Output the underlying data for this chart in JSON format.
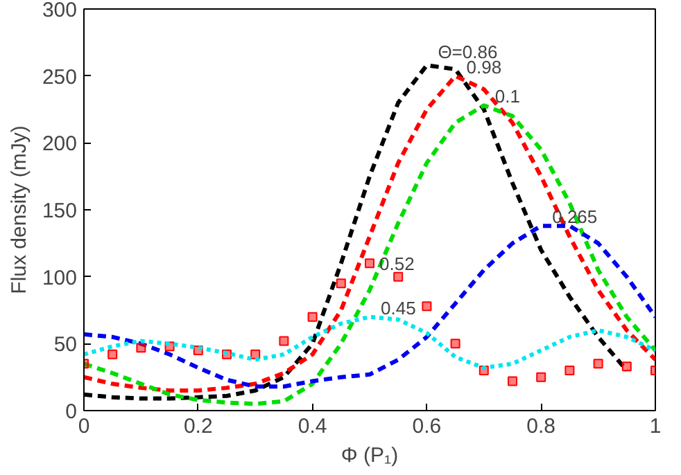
{
  "chart_data": {
    "type": "line",
    "xlabel": "Φ (P₁)",
    "ylabel": "Flux density (mJy)",
    "x": [
      0,
      0.05,
      0.1,
      0.15,
      0.2,
      0.25,
      0.3,
      0.35,
      0.4,
      0.45,
      0.5,
      0.55,
      0.6,
      0.65,
      0.7,
      0.75,
      0.8,
      0.85,
      0.9,
      0.95,
      1.0
    ],
    "xlim": [
      0,
      1
    ],
    "ylim": [
      0,
      300
    ],
    "xticks": [
      0,
      0.2,
      0.4,
      0.6,
      0.8,
      1
    ],
    "yticks": [
      0,
      50,
      100,
      150,
      200,
      250,
      300
    ],
    "grid": false,
    "line_style": "dashed",
    "series": [
      {
        "name": "Θ=0.86",
        "color": "#000000",
        "values": [
          12,
          10,
          9,
          9,
          10,
          11,
          15,
          25,
          50,
          110,
          175,
          230,
          258,
          255,
          225,
          170,
          120,
          85,
          55,
          30,
          null
        ]
      },
      {
        "name": "0.98",
        "color": "#ff0000",
        "values": [
          25,
          20,
          17,
          15,
          15,
          17,
          20,
          28,
          42,
          75,
          130,
          185,
          225,
          250,
          240,
          215,
          175,
          130,
          90,
          60,
          38
        ]
      },
      {
        "name": "0.1",
        "color": "#00dd00",
        "values": [
          35,
          28,
          20,
          12,
          8,
          6,
          5,
          7,
          20,
          50,
          90,
          140,
          185,
          215,
          228,
          220,
          195,
          155,
          105,
          70,
          45
        ]
      },
      {
        "name": "0.265",
        "color": "#0000ee",
        "values": [
          57,
          55,
          50,
          42,
          32,
          23,
          18,
          18,
          22,
          25,
          27,
          38,
          55,
          80,
          105,
          125,
          138,
          138,
          125,
          100,
          70
        ]
      },
      {
        "name": "0.52",
        "type": "scatter",
        "marker": "square",
        "color": "#ff0000",
        "values": [
          35,
          42,
          47,
          48,
          45,
          42,
          42,
          52,
          70,
          95,
          110,
          100,
          78,
          50,
          30,
          22,
          25,
          30,
          35,
          33,
          30
        ]
      },
      {
        "name": "0.45",
        "color": "#00e5ee",
        "line_style": "dotted",
        "values": [
          42,
          48,
          52,
          50,
          47,
          43,
          38,
          42,
          55,
          65,
          70,
          68,
          58,
          40,
          32,
          35,
          45,
          55,
          60,
          55,
          45
        ]
      }
    ]
  }
}
